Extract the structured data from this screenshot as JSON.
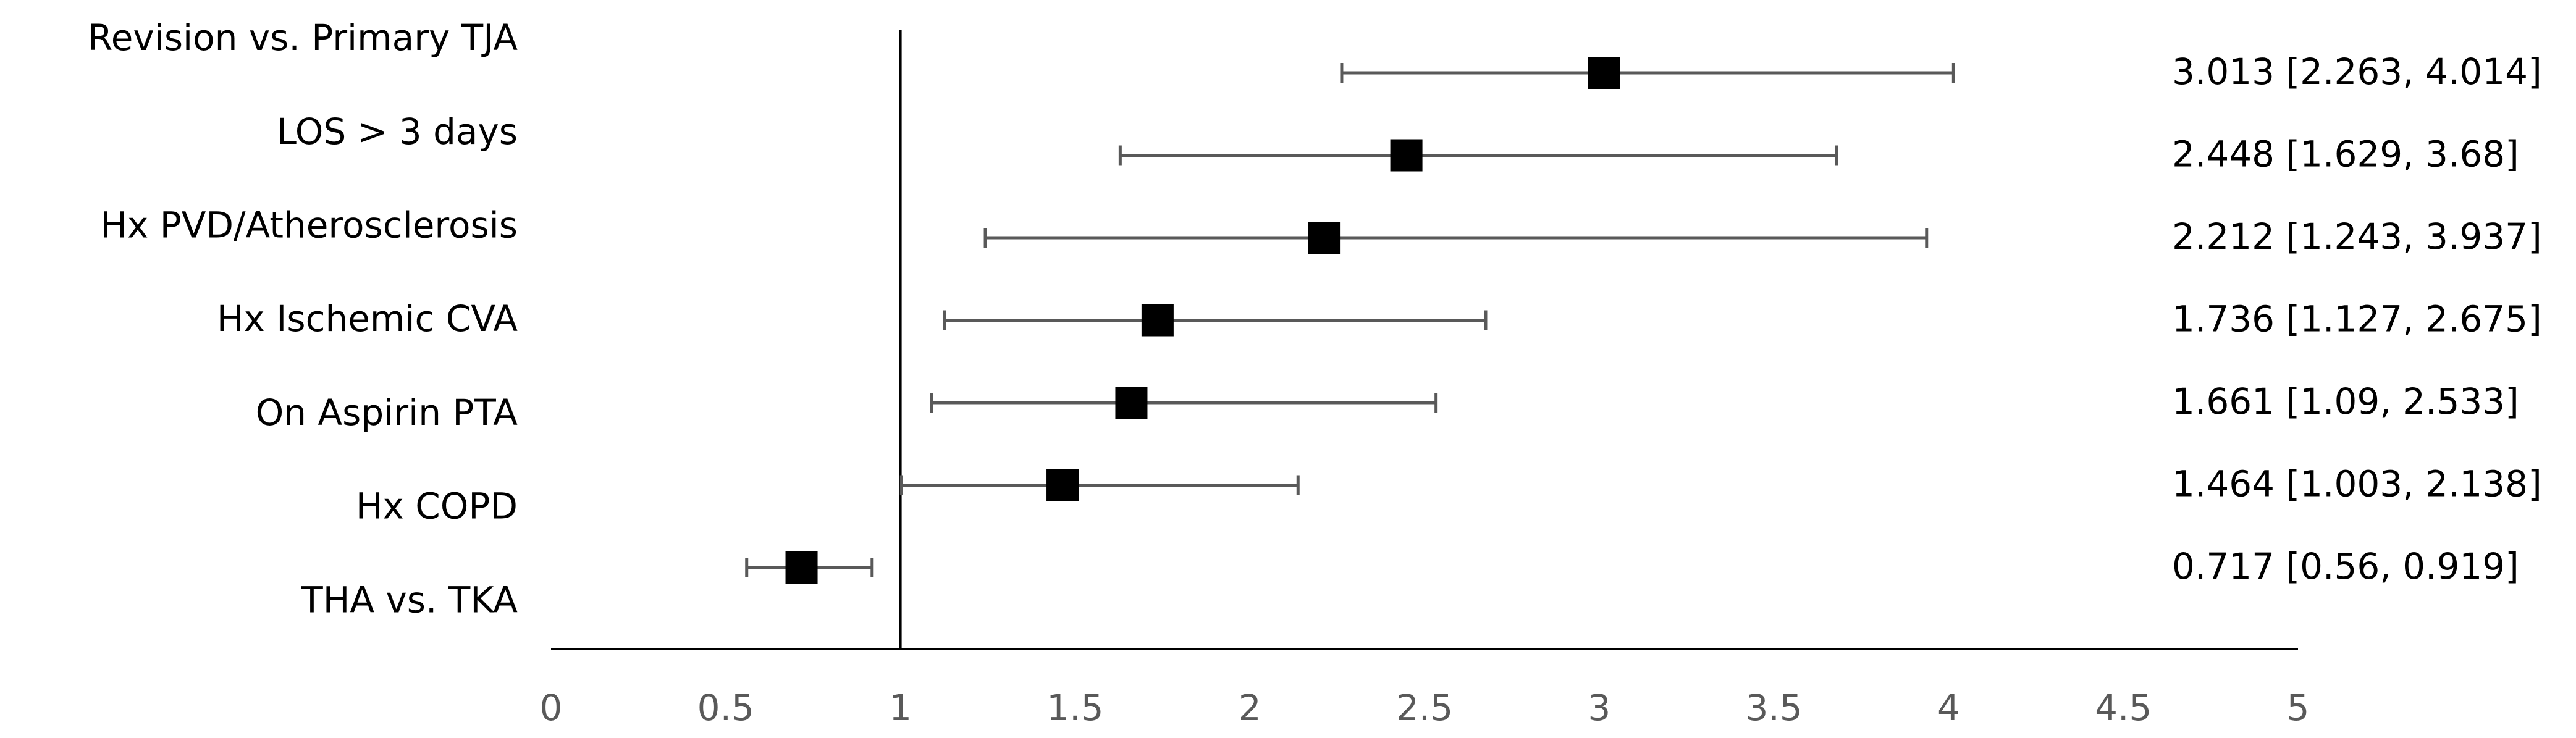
{
  "chart_data": {
    "type": "forest",
    "categories": [
      "Revision vs. Primary TJA",
      "LOS > 3 days",
      "Hx PVD/Atherosclerosis",
      "Hx Ischemic CVA",
      "On Aspirin PTA",
      "Hx COPD",
      "THA vs. TKA"
    ],
    "values": [
      3.013,
      2.448,
      2.212,
      1.736,
      1.661,
      1.464,
      0.717
    ],
    "lower": [
      2.263,
      1.629,
      1.243,
      1.127,
      1.09,
      1.003,
      0.56
    ],
    "upper": [
      4.014,
      3.68,
      3.937,
      2.675,
      2.533,
      2.138,
      0.919
    ],
    "value_labels": [
      "3.013 [2.263, 4.014]",
      "2.448 [1.629, 3.68]",
      "2.212 [1.243, 3.937]",
      "1.736 [1.127, 2.675]",
      "1.661 [1.09, 2.533]",
      "1.464 [1.003, 2.138]",
      "0.717 [0.56, 0.919]"
    ],
    "reference_line": 1,
    "marker_color": "#000000",
    "whisker_color": "#595959",
    "xlim": [
      0,
      5
    ],
    "xticks": [
      0,
      0.5,
      1,
      1.5,
      2,
      2.5,
      3,
      3.5,
      4,
      4.5,
      5
    ]
  }
}
